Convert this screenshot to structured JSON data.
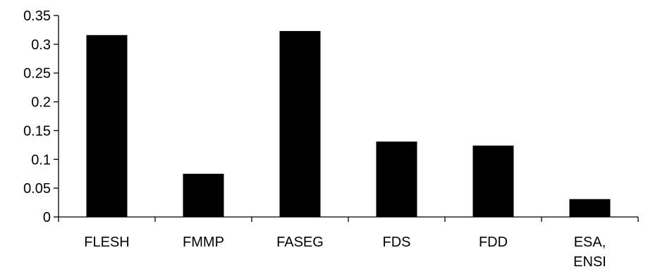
{
  "chart_data": {
    "type": "bar",
    "title": "",
    "xlabel": "",
    "ylabel": "",
    "categories": [
      [
        "FLESH"
      ],
      [
        "FMMP"
      ],
      [
        "FASEG"
      ],
      [
        "FDS"
      ],
      [
        "FDD"
      ],
      [
        "ESA,",
        "ENSI"
      ]
    ],
    "values": [
      0.316,
      0.075,
      0.323,
      0.131,
      0.124,
      0.031
    ],
    "ylim": [
      0,
      0.35
    ],
    "yticks": [
      "0",
      "0.05",
      "0.1",
      "0.15",
      "0.2",
      "0.25",
      "0.3",
      "0.35"
    ],
    "bar_color": "#000000",
    "grid": false,
    "legend": "none"
  }
}
